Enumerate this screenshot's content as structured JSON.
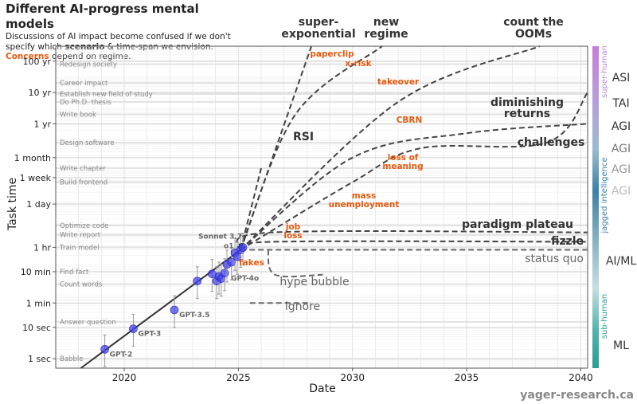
{
  "header": {
    "title": "Different AI-progress mental models",
    "subtitle_line1": "Discussions of AI impact become confused if we don't",
    "subtitle_line2_pre": "specify which ",
    "subtitle_line2_bold": "scenario",
    "subtitle_line2_post": " & time-span we envision.",
    "subtitle_line3_orange": "Concerns",
    "subtitle_line3_post": " depend on regime."
  },
  "colors": {
    "trend_line": "#333333",
    "scenario_line": "#444444",
    "concern_text": "#e8590c",
    "points": "#3c3cf0",
    "grid": "#dddddd",
    "muted_scenario": "#666666"
  },
  "chart_data": {
    "type": "line",
    "xlabel": "Date",
    "ylabel": "Task time",
    "xlim": [
      2017,
      2040.3
    ],
    "ylim": [
      "0.5 sec",
      "300 yr"
    ],
    "y_scale": "log",
    "grid": true,
    "x_ticks": [
      "2020",
      "2025",
      "2030",
      "2035",
      "2040"
    ],
    "y_ticks": [
      {
        "label": "1 sec",
        "value": "1 sec"
      },
      {
        "label": "10 sec",
        "value": "10 sec"
      },
      {
        "label": "1 min",
        "value": "1 min"
      },
      {
        "label": "10 min",
        "value": "10 min"
      },
      {
        "label": "1 hr",
        "value": "1 hr"
      },
      {
        "label": "1 day",
        "value": "1 day"
      },
      {
        "label": "1 week",
        "value": "1 week"
      },
      {
        "label": "1 month",
        "value": "1 month"
      },
      {
        "label": "1 yr",
        "value": "1 yr"
      },
      {
        "label": "10 yr",
        "value": "10 yr"
      },
      {
        "label": "100 yr",
        "value": "100 yr"
      }
    ],
    "task_labels": [
      {
        "label": "Redesign society",
        "value": "80 yr"
      },
      {
        "label": "Career impact",
        "value": "20 yr"
      },
      {
        "label": "Establish new field of study",
        "value": "9 yr"
      },
      {
        "label": "Do Ph.D. thesis",
        "value": "5 yr"
      },
      {
        "label": "Write book",
        "value": "2 yr"
      },
      {
        "label": "Design software",
        "value": "3 month"
      },
      {
        "label": "Write chapter",
        "value": "2 week"
      },
      {
        "label": "Build frontend",
        "value": "5 day"
      },
      {
        "label": "Optimize code",
        "value": "5 hr"
      },
      {
        "label": "Write report",
        "value": "2.5 hr"
      },
      {
        "label": "Train model",
        "value": "1 hr"
      },
      {
        "label": "Find fact",
        "value": "10 min"
      },
      {
        "label": "Count words",
        "value": "4 min"
      },
      {
        "label": "Answer question",
        "value": "15 sec"
      },
      {
        "label": "Babble",
        "value": "1 sec"
      }
    ],
    "models": [
      {
        "name": "GPT-2",
        "date": 2019.15,
        "value": "2 sec",
        "labeled": true
      },
      {
        "name": "GPT-3",
        "date": 2020.4,
        "value": "9 sec",
        "labeled": true
      },
      {
        "name": "GPT-3.5",
        "date": 2022.2,
        "value": "36 sec",
        "labeled": true
      },
      {
        "name": "",
        "date": 2023.2,
        "value": "5 min",
        "labeled": false
      },
      {
        "name": "",
        "date": 2023.85,
        "value": "8.5 min",
        "labeled": false
      },
      {
        "name": "",
        "date": 2024.05,
        "value": "5 min",
        "labeled": false
      },
      {
        "name": "",
        "date": 2024.15,
        "value": "7 min",
        "labeled": false
      },
      {
        "name": "",
        "date": 2024.25,
        "value": "6 min",
        "labeled": false
      },
      {
        "name": "GPT-4o",
        "date": 2024.4,
        "value": "9 min",
        "labeled": true
      },
      {
        "name": "",
        "date": 2024.5,
        "value": "17 min",
        "labeled": false
      },
      {
        "name": "",
        "date": 2024.7,
        "value": "20 min",
        "labeled": false
      },
      {
        "name": "o1",
        "date": 2024.85,
        "value": "40 min",
        "labeled": true
      },
      {
        "name": "",
        "date": 2024.95,
        "value": "30 min",
        "labeled": false
      },
      {
        "name": "",
        "date": 2025.1,
        "value": "50 min",
        "labeled": false
      },
      {
        "name": "Sonnet 3.7",
        "date": 2025.2,
        "value": "59 min",
        "labeled": true
      }
    ],
    "scenarios": [
      {
        "name": "super-\nexponential",
        "points": [
          [
            2025.1,
            "50 min"
          ],
          [
            2026.5,
            "1 month"
          ],
          [
            2028.2,
            "300 yr"
          ]
        ]
      },
      {
        "name": "new\nregime",
        "points": [
          [
            2025.1,
            "50 min"
          ],
          [
            2027.5,
            "2 yr"
          ],
          [
            2031.3,
            "300 yr"
          ]
        ]
      },
      {
        "name": "count the\nOOMs",
        "points": [
          [
            2025.1,
            "50 min"
          ],
          [
            2032,
            "5 yr"
          ],
          [
            2038.2,
            "300 yr"
          ]
        ]
      },
      {
        "name": "RSI",
        "points": [
          [
            2025.1,
            "50 min"
          ],
          [
            2026.0,
            "2 week"
          ]
        ]
      },
      {
        "name": "diminishing\nreturns",
        "points": [
          [
            2025.1,
            "50 min"
          ],
          [
            2030,
            "1 month"
          ],
          [
            2035,
            "6 month"
          ],
          [
            2040.3,
            "1 yr"
          ]
        ]
      },
      {
        "name": "challenges",
        "points": [
          [
            2025.1,
            "50 min"
          ],
          [
            2030,
            "5 day"
          ],
          [
            2033,
            "2 month"
          ],
          [
            2038.5,
            "3 month"
          ],
          [
            2040.3,
            "10 yr"
          ]
        ]
      },
      {
        "name": "paradigm plateau",
        "points": [
          [
            2025.1,
            "50 min"
          ],
          [
            2026.5,
            "3 hr"
          ],
          [
            2040.3,
            "3 hr"
          ]
        ]
      },
      {
        "name": "fizzle",
        "points": [
          [
            2025.1,
            "50 min"
          ],
          [
            2026.5,
            "1.5 hr"
          ],
          [
            2040.3,
            "1.5 hr"
          ]
        ]
      },
      {
        "name": "status quo",
        "points": [
          [
            2025.1,
            "50 min"
          ],
          [
            2040.3,
            "50 min"
          ]
        ]
      },
      {
        "name": "hype bubble",
        "points": [
          [
            2026.3,
            "50 min"
          ],
          [
            2026.6,
            "8 min"
          ],
          [
            2028.7,
            "8 min"
          ]
        ]
      },
      {
        "name": "ignore",
        "points": [
          [
            2025.5,
            "1 min"
          ],
          [
            2028.2,
            "1 min"
          ]
        ]
      }
    ],
    "concerns": [
      "paperclip",
      "x-risk",
      "takeover",
      "CBRN",
      "loss of\nmeaning",
      "mass\nunemployment",
      "job\nloss",
      "fakes"
    ],
    "capability_scale": {
      "labels": [
        "ASI",
        "TAI",
        "AGI",
        "AGI",
        "AGI",
        "AGI",
        "AI/ML",
        "ML"
      ],
      "band_labels": [
        "super-human",
        "jagged intelligence",
        "sub-human"
      ]
    },
    "watermark": "yager-research.ca"
  }
}
